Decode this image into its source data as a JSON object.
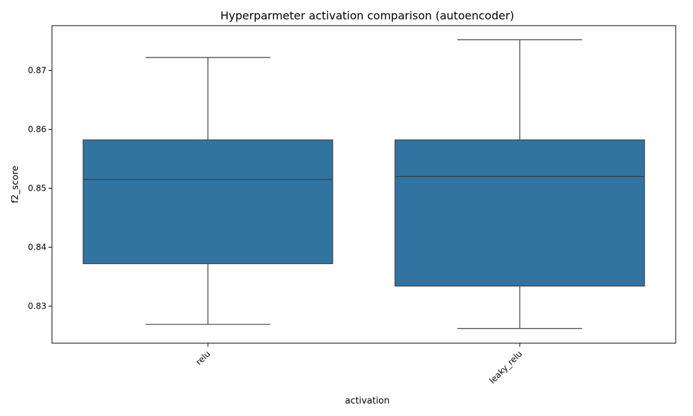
{
  "chart_data": {
    "type": "box",
    "title": "Hyperparmeter activation comparison (autoencoder)",
    "xlabel": "activation",
    "ylabel": "f2_score",
    "ylim": [
      0.8237,
      0.8776
    ],
    "yticks": [
      0.83,
      0.84,
      0.85,
      0.86,
      0.87
    ],
    "ytick_labels": [
      "0.83",
      "0.84",
      "0.85",
      "0.86",
      "0.87"
    ],
    "categories": [
      "relu",
      "leaky_relu"
    ],
    "boxes": [
      {
        "name": "relu",
        "whisker_low": 0.8269,
        "q1": 0.8372,
        "median": 0.8515,
        "q3": 0.8582,
        "whisker_high": 0.8722
      },
      {
        "name": "leaky_relu",
        "whisker_low": 0.8262,
        "q1": 0.8334,
        "median": 0.852,
        "q3": 0.8582,
        "whisker_high": 0.8752
      }
    ],
    "box_color": "#3274a1",
    "line_color": "#3d3d3d",
    "grid": false,
    "legend": "none"
  }
}
